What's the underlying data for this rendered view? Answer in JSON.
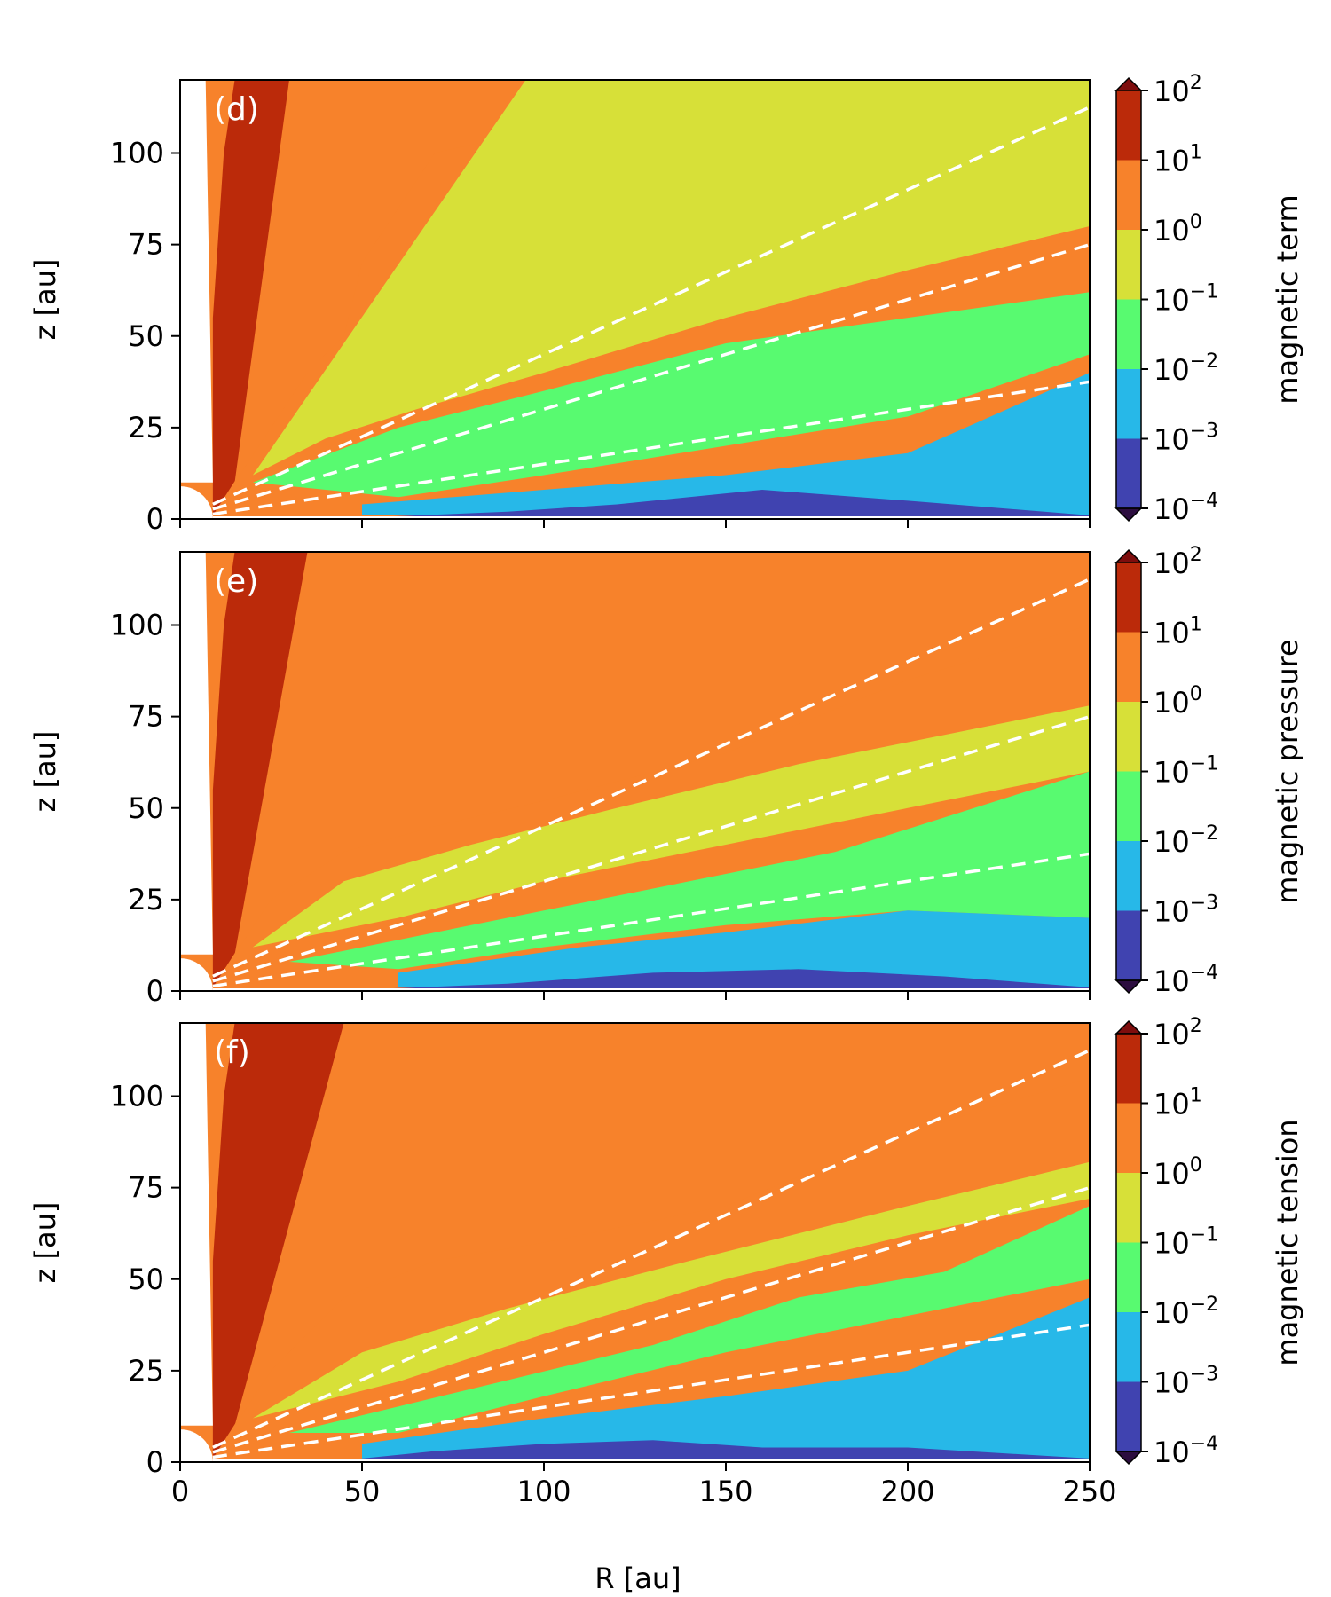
{
  "figure": {
    "xlabel": "R [au]"
  },
  "chart_data": [
    {
      "type": "heatmap",
      "panel_label": "(d)",
      "ylabel": "z [au]",
      "colorbar_label": "magnetic term",
      "xlim": [
        0,
        250
      ],
      "ylim": [
        0,
        120
      ],
      "xticks": [
        0,
        50,
        100,
        150,
        200,
        250
      ],
      "yticks": [
        0,
        25,
        50,
        75,
        100
      ],
      "colorbar_ticks": [
        "10^2",
        "10^1",
        "10^0",
        "10^-1",
        "10^-2",
        "10^-3",
        "10^-4"
      ],
      "regions": [
        {
          "level": "10^1 – 10^2",
          "points": [
            [
              9,
              1
            ],
            [
              9,
              55
            ],
            [
              12,
              100
            ],
            [
              15,
              120
            ],
            [
              30,
              120
            ],
            [
              34,
              90
            ],
            [
              38,
              70
            ],
            [
              33,
              45
            ],
            [
              25,
              30
            ],
            [
              18,
              15
            ]
          ]
        },
        {
          "level": "10^0 – 10^1",
          "points": [
            [
              30,
              120
            ],
            [
              95,
              120
            ],
            [
              92,
              105
            ],
            [
              70,
              100
            ],
            [
              60,
              85
            ],
            [
              50,
              70
            ],
            [
              45,
              50
            ],
            [
              35,
              40
            ],
            [
              25,
              25
            ],
            [
              15,
              10
            ]
          ]
        },
        {
          "level": "10^-1 – 10^0",
          "points": [
            [
              95,
              120
            ],
            [
              250,
              120
            ],
            [
              250,
              80
            ],
            [
              200,
              68
            ],
            [
              150,
              55
            ],
            [
              100,
              40
            ],
            [
              65,
              30
            ],
            [
              40,
              22
            ],
            [
              20,
              12
            ]
          ]
        },
        {
          "level": "10^-2 – 10^-1",
          "points": [
            [
              20,
              10
            ],
            [
              60,
              25
            ],
            [
              100,
              35
            ],
            [
              150,
              48
            ],
            [
              200,
              55
            ],
            [
              250,
              62
            ],
            [
              250,
              45
            ],
            [
              200,
              28
            ],
            [
              150,
              20
            ],
            [
              100,
              12
            ],
            [
              60,
              6
            ]
          ]
        },
        {
          "level": "10^-3 – 10^-2",
          "points": [
            [
              50,
              4
            ],
            [
              100,
              8
            ],
            [
              150,
              12
            ],
            [
              200,
              18
            ],
            [
              250,
              40
            ],
            [
              250,
              1
            ],
            [
              50,
              1
            ]
          ]
        },
        {
          "level": "10^-4 – 10^-3",
          "points": [
            [
              40,
              0
            ],
            [
              90,
              2
            ],
            [
              120,
              4
            ],
            [
              160,
              8
            ],
            [
              200,
              5
            ],
            [
              250,
              1
            ],
            [
              250,
              0
            ]
          ]
        }
      ]
    },
    {
      "type": "heatmap",
      "panel_label": "(e)",
      "ylabel": "z [au]",
      "colorbar_label": "magnetic pressure",
      "xlim": [
        0,
        250
      ],
      "ylim": [
        0,
        120
      ],
      "xticks": [
        0,
        50,
        100,
        150,
        200,
        250
      ],
      "yticks": [
        0,
        25,
        50,
        75,
        100
      ],
      "colorbar_ticks": [
        "10^2",
        "10^1",
        "10^0",
        "10^-1",
        "10^-2",
        "10^-3",
        "10^-4"
      ],
      "regions": [
        {
          "level": "10^1 – 10^2",
          "points": [
            [
              9,
              1
            ],
            [
              9,
              55
            ],
            [
              12,
              100
            ],
            [
              15,
              120
            ],
            [
              35,
              120
            ],
            [
              40,
              95
            ],
            [
              38,
              70
            ],
            [
              33,
              45
            ],
            [
              25,
              30
            ],
            [
              18,
              15
            ]
          ]
        },
        {
          "level": "10^0 – 10^1",
          "points": [
            [
              35,
              120
            ],
            [
              250,
              120
            ],
            [
              250,
              100
            ],
            [
              200,
              85
            ],
            [
              150,
              65
            ],
            [
              100,
              52
            ],
            [
              70,
              45
            ],
            [
              45,
              38
            ],
            [
              25,
              25
            ],
            [
              15,
              10
            ]
          ]
        },
        {
          "level": "10^-1 – 10^0",
          "points": [
            [
              20,
              12
            ],
            [
              45,
              30
            ],
            [
              80,
              40
            ],
            [
              120,
              50
            ],
            [
              170,
              62
            ],
            [
              250,
              78
            ],
            [
              250,
              60
            ],
            [
              200,
              50
            ],
            [
              150,
              40
            ],
            [
              100,
              30
            ],
            [
              60,
              20
            ]
          ]
        },
        {
          "level": "10^-2 – 10^-1",
          "points": [
            [
              30,
              8
            ],
            [
              80,
              18
            ],
            [
              130,
              28
            ],
            [
              180,
              38
            ],
            [
              250,
              60
            ],
            [
              250,
              20
            ],
            [
              200,
              22
            ],
            [
              150,
              18
            ],
            [
              100,
              12
            ],
            [
              60,
              6
            ]
          ]
        },
        {
          "level": "10^-3 – 10^-2",
          "points": [
            [
              60,
              5
            ],
            [
              110,
              12
            ],
            [
              150,
              16
            ],
            [
              200,
              22
            ],
            [
              250,
              20
            ],
            [
              250,
              1
            ],
            [
              60,
              1
            ]
          ]
        },
        {
          "level": "10^-4 – 10^-3",
          "points": [
            [
              40,
              0
            ],
            [
              90,
              2
            ],
            [
              130,
              5
            ],
            [
              170,
              6
            ],
            [
              210,
              4
            ],
            [
              250,
              1
            ],
            [
              250,
              0
            ]
          ]
        }
      ]
    },
    {
      "type": "heatmap",
      "panel_label": "(f)",
      "ylabel": "z [au]",
      "colorbar_label": "magnetic tension",
      "xlim": [
        0,
        250
      ],
      "ylim": [
        0,
        120
      ],
      "xticks": [
        0,
        50,
        100,
        150,
        200,
        250
      ],
      "yticks": [
        0,
        25,
        50,
        75,
        100
      ],
      "colorbar_ticks": [
        "10^2",
        "10^1",
        "10^0",
        "10^-1",
        "10^-2",
        "10^-3",
        "10^-4"
      ],
      "regions": [
        {
          "level": "10^1 – 10^2",
          "points": [
            [
              9,
              1
            ],
            [
              9,
              55
            ],
            [
              12,
              100
            ],
            [
              15,
              120
            ],
            [
              45,
              120
            ],
            [
              50,
              105
            ],
            [
              42,
              80
            ],
            [
              35,
              55
            ],
            [
              25,
              30
            ],
            [
              18,
              15
            ]
          ]
        },
        {
          "level": "10^0 – 10^1",
          "points": [
            [
              45,
              120
            ],
            [
              250,
              120
            ],
            [
              250,
              105
            ],
            [
              200,
              90
            ],
            [
              150,
              70
            ],
            [
              100,
              60
            ],
            [
              70,
              55
            ],
            [
              45,
              45
            ],
            [
              25,
              25
            ],
            [
              15,
              10
            ]
          ]
        },
        {
          "level": "10^-1 – 10^0",
          "points": [
            [
              20,
              12
            ],
            [
              50,
              30
            ],
            [
              90,
              42
            ],
            [
              140,
              55
            ],
            [
              200,
              70
            ],
            [
              250,
              82
            ],
            [
              250,
              72
            ],
            [
              200,
              62
            ],
            [
              150,
              50
            ],
            [
              100,
              35
            ],
            [
              60,
              22
            ]
          ]
        },
        {
          "level": "10^-2 – 10^-1",
          "points": [
            [
              30,
              8
            ],
            [
              80,
              20
            ],
            [
              130,
              32
            ],
            [
              170,
              45
            ],
            [
              210,
              52
            ],
            [
              250,
              70
            ],
            [
              250,
              50
            ],
            [
              200,
              40
            ],
            [
              150,
              30
            ],
            [
              100,
              18
            ],
            [
              60,
              8
            ]
          ]
        },
        {
          "level": "10^-3 – 10^-2",
          "points": [
            [
              50,
              5
            ],
            [
              100,
              12
            ],
            [
              150,
              18
            ],
            [
              200,
              25
            ],
            [
              250,
              45
            ],
            [
              250,
              1
            ],
            [
              50,
              1
            ]
          ]
        },
        {
          "level": "10^-4 – 10^-3",
          "points": [
            [
              40,
              0
            ],
            [
              70,
              3
            ],
            [
              100,
              5
            ],
            [
              130,
              6
            ],
            [
              160,
              4
            ],
            [
              200,
              4
            ],
            [
              250,
              1
            ],
            [
              250,
              0
            ]
          ]
        }
      ]
    }
  ],
  "colorbar_colors": [
    "#7e0d0d",
    "#bb2a0a",
    "#f7822b",
    "#d7e038",
    "#58fa70",
    "#27b8e8",
    "#4043b0",
    "#2c0d3f"
  ],
  "background_fill_color": "#f7822b",
  "dashed_line_color": "#ffffff",
  "dashed_lines_aspect": [
    0.45,
    0.3,
    0.15
  ]
}
